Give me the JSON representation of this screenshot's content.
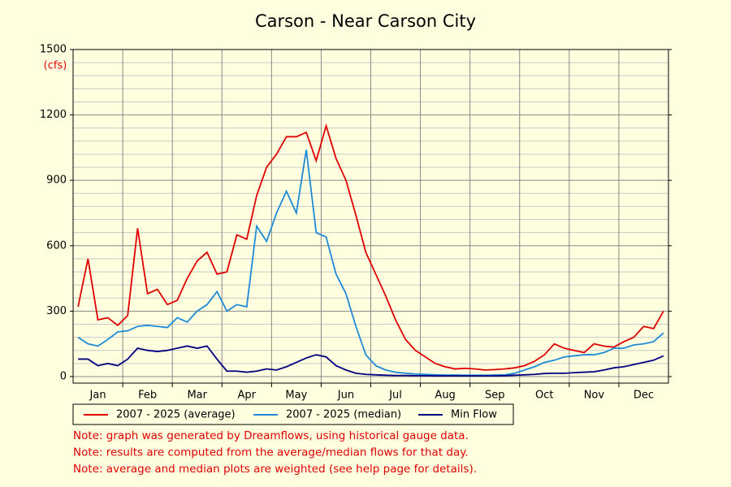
{
  "chart_data": {
    "type": "line",
    "title": "Carson - Near Carson City",
    "y_label": "(cfs)",
    "categories": [
      null,
      null,
      "Jan",
      null,
      null,
      null,
      null,
      "Feb",
      null,
      null,
      null,
      null,
      "Mar",
      null,
      null,
      null,
      null,
      "Apr",
      null,
      null,
      null,
      null,
      "May",
      null,
      null,
      null,
      null,
      "Jun",
      null,
      null,
      null,
      null,
      "Jul",
      null,
      null,
      null,
      null,
      "Aug",
      null,
      null,
      null,
      null,
      "Sep",
      null,
      null,
      null,
      null,
      "Oct",
      null,
      null,
      null,
      null,
      "Nov",
      null,
      null,
      null,
      null,
      "Dec",
      null,
      null
    ],
    "series": [
      {
        "name": "2007 - 2025 (average)",
        "color": "#e00000",
        "values": [
          320,
          540,
          260,
          270,
          235,
          280,
          680,
          380,
          400,
          330,
          350,
          450,
          530,
          570,
          470,
          480,
          650,
          630,
          830,
          960,
          1020,
          1100,
          1100,
          1120,
          990,
          1150,
          1000,
          900,
          740,
          570,
          470,
          370,
          260,
          170,
          120,
          90,
          60,
          45,
          35,
          38,
          35,
          30,
          32,
          35,
          40,
          50,
          70,
          100,
          150,
          130,
          120,
          110,
          150,
          140,
          135,
          160,
          180,
          230,
          220,
          300
        ]
      },
      {
        "name": "2007 - 2025 (median)",
        "color": "#1e8ad8",
        "values": [
          180,
          150,
          140,
          170,
          205,
          210,
          230,
          235,
          230,
          225,
          270,
          250,
          300,
          330,
          390,
          300,
          330,
          320,
          690,
          620,
          750,
          850,
          750,
          1040,
          660,
          640,
          470,
          380,
          230,
          100,
          50,
          30,
          20,
          15,
          12,
          10,
          8,
          7,
          7,
          6,
          6,
          6,
          7,
          8,
          15,
          30,
          45,
          65,
          75,
          90,
          95,
          100,
          100,
          110,
          130,
          130,
          145,
          150,
          160,
          200
        ]
      },
      {
        "name": "Min Flow",
        "color": "#000080",
        "values": [
          80,
          80,
          50,
          60,
          50,
          80,
          130,
          120,
          115,
          120,
          130,
          140,
          130,
          140,
          80,
          25,
          25,
          20,
          25,
          35,
          30,
          45,
          65,
          85,
          100,
          90,
          50,
          30,
          15,
          10,
          8,
          6,
          5,
          5,
          4,
          4,
          3,
          3,
          3,
          3,
          3,
          3,
          3,
          4,
          6,
          8,
          10,
          14,
          15,
          15,
          18,
          20,
          22,
          30,
          40,
          45,
          55,
          65,
          75,
          95
        ]
      }
    ],
    "ylim": [
      -30,
      1500
    ],
    "yticks": [
      0,
      300,
      600,
      900,
      1200,
      1500
    ],
    "grid": true,
    "notes": [
      "Note: graph was generated by Dreamflows, using historical gauge data.",
      "Note: results are computed from the average/median flows for that day.",
      "Note: average and median plots are weighted (see help page for details)."
    ]
  }
}
